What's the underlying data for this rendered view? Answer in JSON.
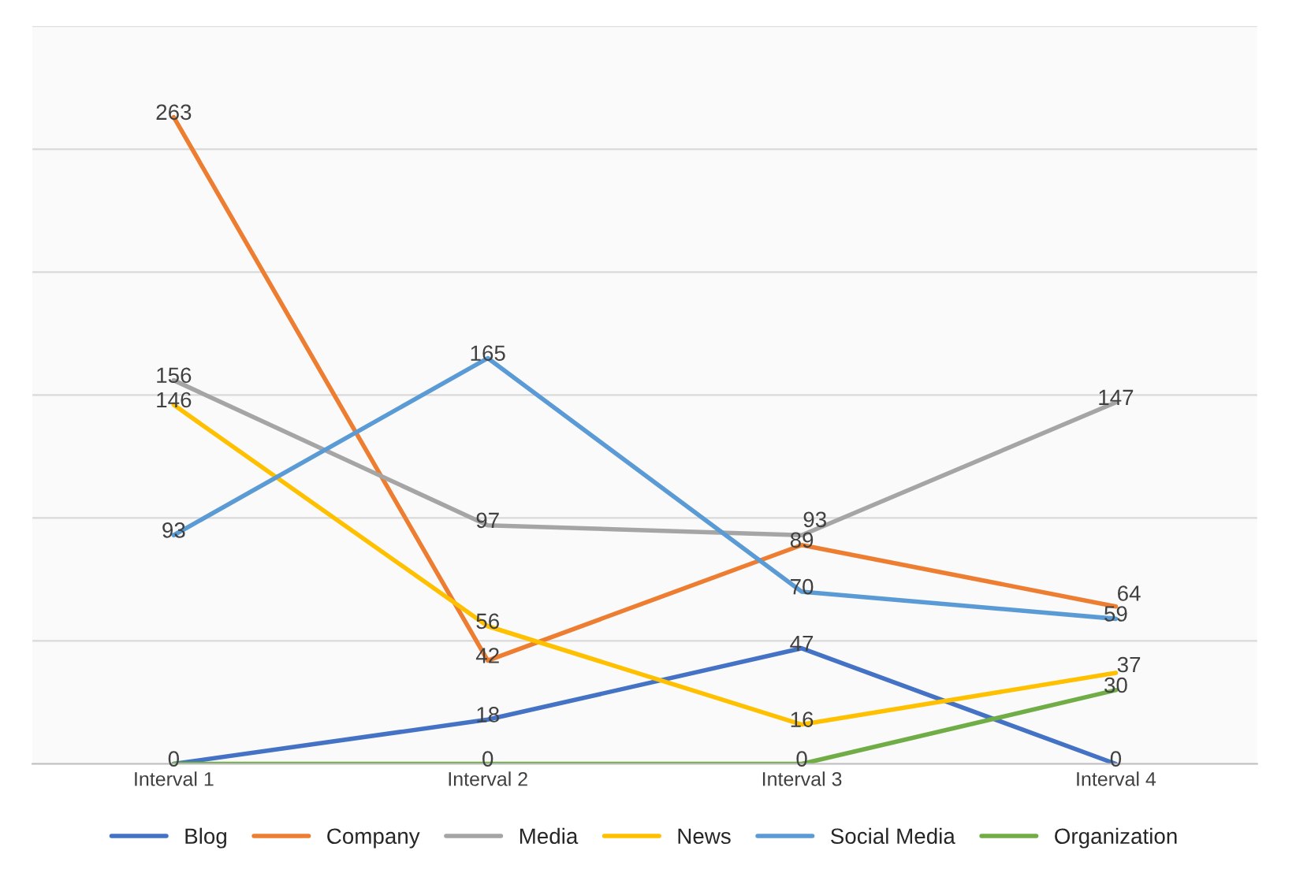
{
  "chart_data": {
    "type": "line",
    "categories": [
      "Interval 1",
      "Interval 2",
      "Interval 3",
      "Interval 4"
    ],
    "series": [
      {
        "name": "Blog",
        "color": "#4472c4",
        "values": [
          0,
          18,
          47,
          0
        ],
        "value_labels": [
          "0",
          "18",
          "47",
          "0"
        ]
      },
      {
        "name": "Company",
        "color": "#ed7d31",
        "values": [
          263,
          42,
          89,
          64
        ],
        "value_labels": [
          "263",
          "42",
          "89",
          "64"
        ]
      },
      {
        "name": "Media",
        "color": "#a5a5a5",
        "values": [
          156,
          97,
          93,
          147
        ],
        "value_labels": [
          "156",
          "97",
          "93",
          "147"
        ]
      },
      {
        "name": "News",
        "color": "#ffc000",
        "values": [
          146,
          56,
          16,
          37
        ],
        "value_labels": [
          "146",
          "56",
          "16",
          "37"
        ]
      },
      {
        "name": "Social Media",
        "color": "#5b9bd5",
        "values": [
          93,
          165,
          70,
          59
        ],
        "value_labels": [
          "93",
          "165",
          "70",
          "59"
        ]
      },
      {
        "name": "Organization",
        "color": "#70ad47",
        "values": [
          0,
          0,
          0,
          30
        ],
        "value_labels": [
          null,
          "0",
          "0",
          "30"
        ]
      }
    ],
    "ylim": [
      0,
      300
    ],
    "yticks": [
      {
        "value": 0,
        "label": null
      },
      {
        "value": 50,
        "label": null
      },
      {
        "value": 100,
        "label": null
      },
      {
        "value": 150,
        "label": null
      },
      {
        "value": 200,
        "label": null
      },
      {
        "value": 250,
        "label": null
      },
      {
        "value": 300,
        "label": null
      }
    ],
    "tick_labels": "x",
    "grid": "y",
    "legend": "bottom",
    "marker": "none",
    "line_style": "solid"
  }
}
